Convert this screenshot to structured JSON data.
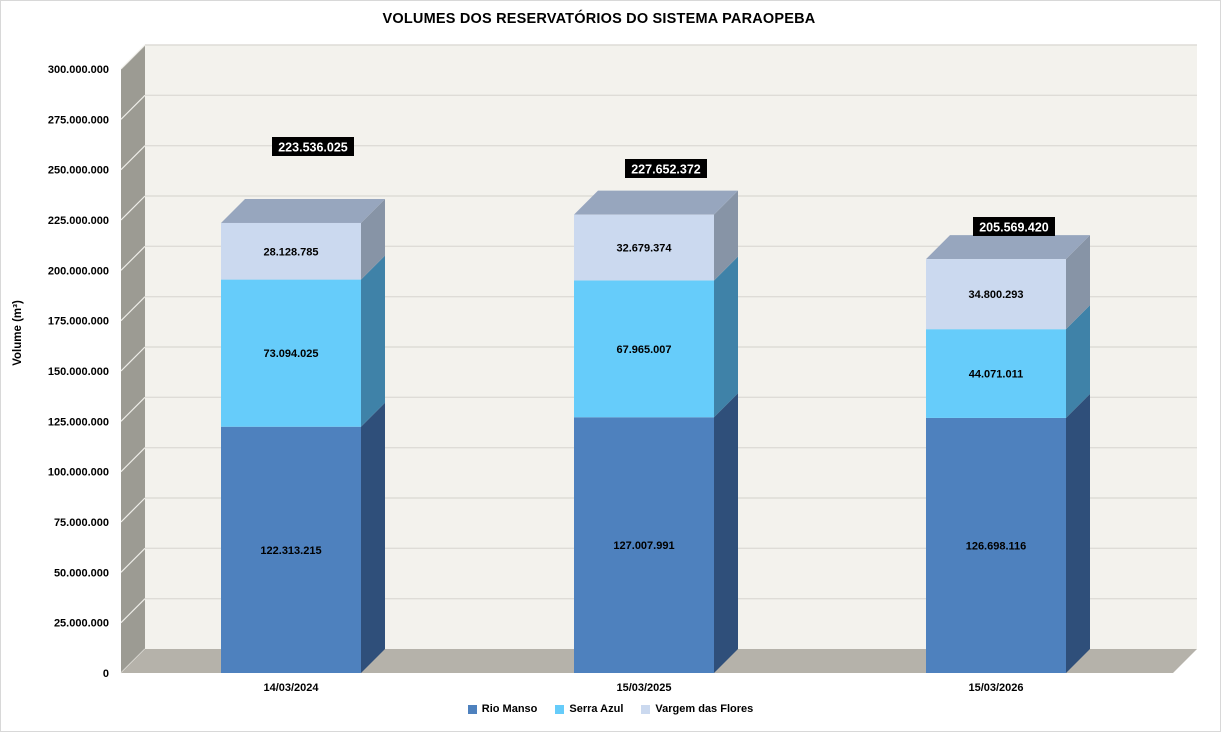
{
  "chart_data": {
    "type": "bar",
    "variant": "3d-stacked-column",
    "title": "VOLUMES DOS RESERVATÓRIOS DO SISTEMA PARAOPEBA",
    "ylabel": "Volume (m³)",
    "ylim": [
      0,
      300000000
    ],
    "ytick_step": 25000000,
    "grid": true,
    "legend_position": "bottom",
    "number_format": "thousands-dot",
    "categories": [
      "14/03/2024",
      "15/03/2025",
      "15/03/2026"
    ],
    "series": [
      {
        "name": "Rio Manso",
        "values": [
          122313215,
          127007991,
          126698116
        ],
        "color": "#4E81BE",
        "side_color": "#2F4F7A",
        "top_color": "#7E99BC"
      },
      {
        "name": "Serra Azul",
        "values": [
          73094025,
          67965007,
          44071011
        ],
        "color": "#66CCFA",
        "side_color": "#3F82A8",
        "top_color": "#8FD2F0"
      },
      {
        "name": "Vargem das Flores",
        "values": [
          28128785,
          32679374,
          34800293
        ],
        "color": "#CBD9EF",
        "side_color": "#8794A6",
        "top_color": "#97A6BE"
      }
    ],
    "totals": [
      223536025,
      227652372,
      205569420
    ],
    "colors": {
      "back_wall": "#F3F2ED",
      "gridline": "#DEDCD7",
      "side_wall": "#9C9B93",
      "wall_tick": "#EFEEE9",
      "floor": "#B5B2AA",
      "text": "#000000",
      "total_label_bg": "#000000",
      "total_label_text": "#FFFFFF"
    }
  }
}
